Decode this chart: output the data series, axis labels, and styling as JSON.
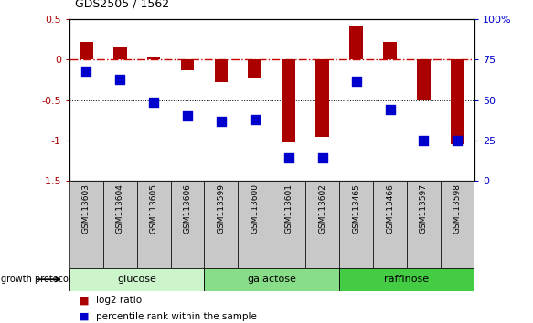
{
  "title": "GDS2505 / 1562",
  "samples": [
    "GSM113603",
    "GSM113604",
    "GSM113605",
    "GSM113606",
    "GSM113599",
    "GSM113600",
    "GSM113601",
    "GSM113602",
    "GSM113465",
    "GSM113466",
    "GSM113597",
    "GSM113598"
  ],
  "log2_ratio": [
    0.22,
    0.15,
    0.03,
    -0.13,
    -0.28,
    -0.22,
    -1.02,
    -0.95,
    0.42,
    0.22,
    -0.5,
    -1.05
  ],
  "percentile_rank": [
    68,
    63,
    49,
    40,
    37,
    38,
    14,
    14,
    62,
    44,
    25,
    25
  ],
  "groups": [
    {
      "label": "glucose",
      "start": 0,
      "end": 4,
      "color": "#ccf5cc"
    },
    {
      "label": "galactose",
      "start": 4,
      "end": 8,
      "color": "#88dd88"
    },
    {
      "label": "raffinose",
      "start": 8,
      "end": 12,
      "color": "#44cc44"
    }
  ],
  "ylim_left": [
    -1.5,
    0.5
  ],
  "ylim_right": [
    0,
    100
  ],
  "yticks_left": [
    -1.5,
    -1.0,
    -0.5,
    0.0,
    0.5
  ],
  "yticks_right": [
    0,
    25,
    50,
    75,
    100
  ],
  "bar_color": "#aa0000",
  "dot_color": "#0000cc",
  "hline_color": "#cc0000",
  "bg_color": "#ffffff",
  "bar_width": 0.4,
  "dot_size": 50,
  "sample_box_color": "#c8c8c8",
  "group_border_color": "#000000"
}
